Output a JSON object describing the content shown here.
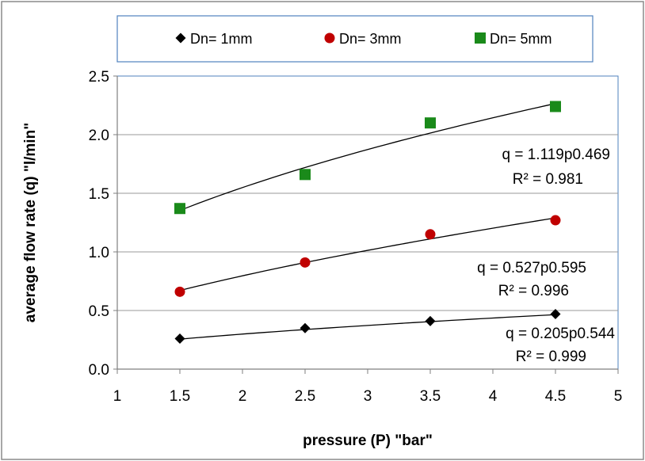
{
  "chart_data": {
    "type": "scatter",
    "xlabel": "pressure  (P) \"bar\"",
    "ylabel": "average flow rate  (q)  \"l/min\"",
    "xlim": [
      1,
      5
    ],
    "ylim": [
      0,
      2.5
    ],
    "x_ticks": [
      "1",
      "1.5",
      "2",
      "2.5",
      "3",
      "3.5",
      "4",
      "4.5",
      "5"
    ],
    "y_ticks": [
      "0.0",
      "0.5",
      "1.0",
      "1.5",
      "2.0",
      "2.5"
    ],
    "grid": "horizontal",
    "legend_position": "top",
    "series": [
      {
        "name": "Dn= 1mm",
        "marker": "diamond",
        "color": "#000000",
        "x": [
          1.5,
          2.5,
          3.5,
          4.5
        ],
        "y": [
          0.26,
          0.35,
          0.41,
          0.47
        ],
        "fit": {
          "a": 0.205,
          "b": 0.544
        },
        "equation_prefix": "q =  ",
        "equation_coef": "0.205",
        "equation_p": "p",
        "equation_exp": "0.544",
        "r2_label": "R² = 0.999"
      },
      {
        "name": "Dn= 3mm",
        "marker": "circle",
        "color": "#c00000",
        "x": [
          1.5,
          2.5,
          3.5,
          4.5
        ],
        "y": [
          0.66,
          0.91,
          1.15,
          1.27
        ],
        "fit": {
          "a": 0.527,
          "b": 0.595
        },
        "equation_prefix": "q =  ",
        "equation_coef": "0.527",
        "equation_p": "p",
        "equation_exp": "0.595",
        "r2_label": "R² = 0.996"
      },
      {
        "name": "Dn= 5mm",
        "marker": "square",
        "color": "#1a8a1a",
        "x": [
          1.5,
          2.5,
          3.5,
          4.5
        ],
        "y": [
          1.37,
          1.66,
          2.1,
          2.24
        ],
        "fit": {
          "a": 1.119,
          "b": 0.469
        },
        "equation_prefix": "q =  ",
        "equation_coef": "1.119",
        "equation_p": "p",
        "equation_exp": "0.469",
        "r2_label": "R² = 0.981"
      }
    ]
  }
}
